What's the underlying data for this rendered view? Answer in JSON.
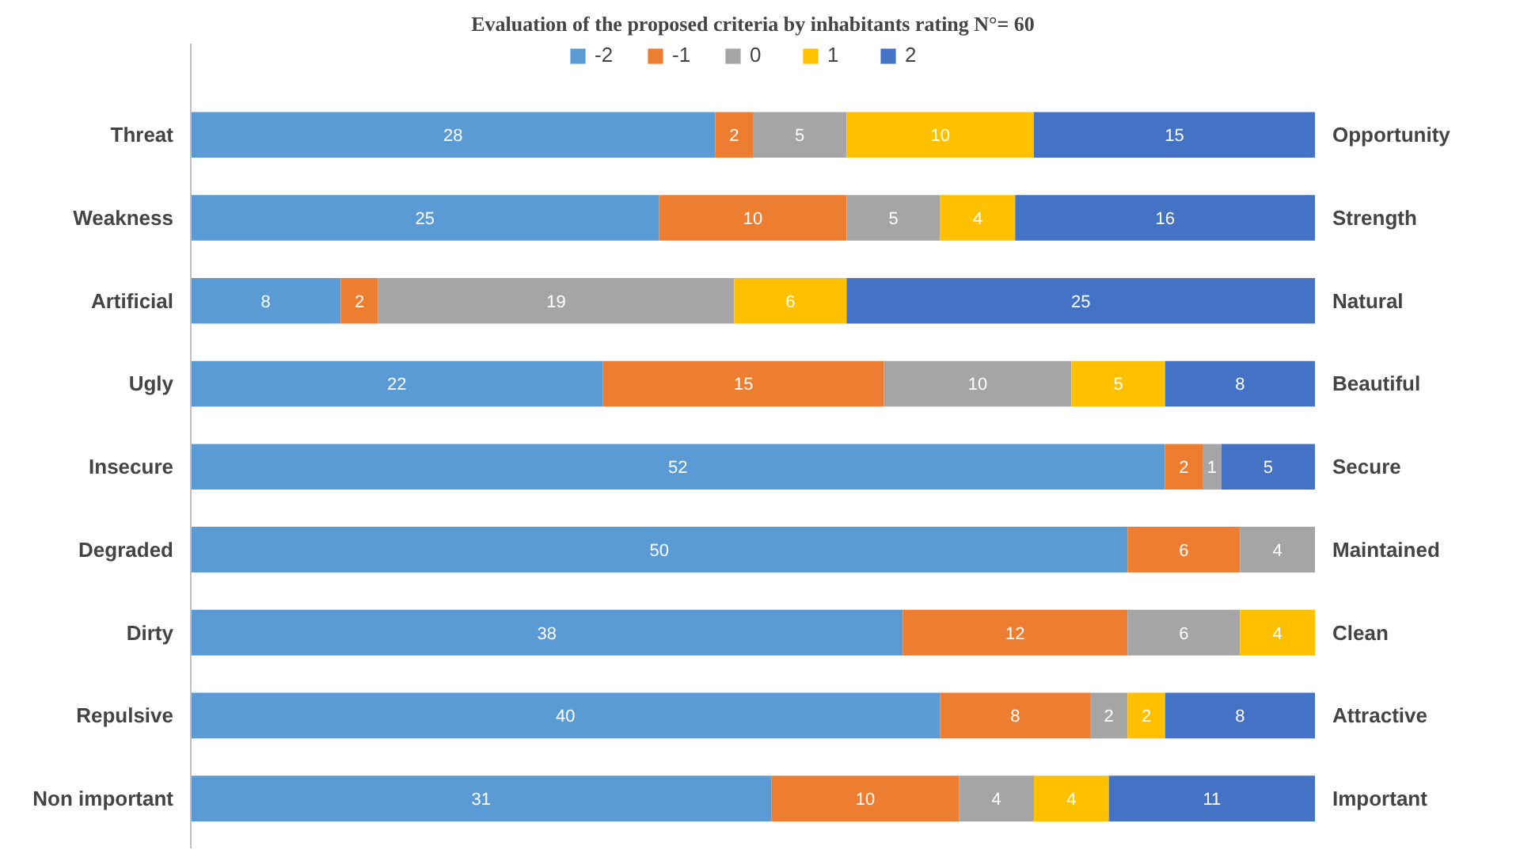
{
  "chart_data": {
    "type": "bar",
    "orientation": "horizontal",
    "stacked": true,
    "title": "Evaluation of the proposed criteria by inhabitants rating N°= 60",
    "categories": [
      "Threat",
      "Weakness",
      "Artificial",
      "Ugly",
      "Insecure",
      "Degraded",
      "Dirty",
      "Repulsive",
      "Non important"
    ],
    "y2_categories": [
      "Opportunity",
      "Strength",
      "Natural",
      "Beautiful",
      "Secure",
      "Maintained",
      "Clean",
      "Attractive",
      "Important"
    ],
    "series": [
      {
        "name": "-2",
        "color": "#5b9bd5",
        "values": [
          28,
          25,
          8,
          22,
          52,
          50,
          38,
          40,
          31
        ]
      },
      {
        "name": "-1",
        "color": "#ed7d31",
        "values": [
          2,
          10,
          2,
          15,
          2,
          6,
          12,
          8,
          10
        ]
      },
      {
        "name": "0",
        "color": "#a5a5a5",
        "values": [
          5,
          5,
          19,
          10,
          1,
          4,
          6,
          2,
          4
        ]
      },
      {
        "name": "1",
        "color": "#ffc000",
        "values": [
          10,
          4,
          6,
          5,
          null,
          null,
          4,
          2,
          4
        ]
      },
      {
        "name": "2",
        "color": "#4472c4",
        "values": [
          15,
          16,
          25,
          8,
          5,
          null,
          null,
          8,
          11
        ]
      }
    ],
    "data_labels": true,
    "legend": "top"
  }
}
